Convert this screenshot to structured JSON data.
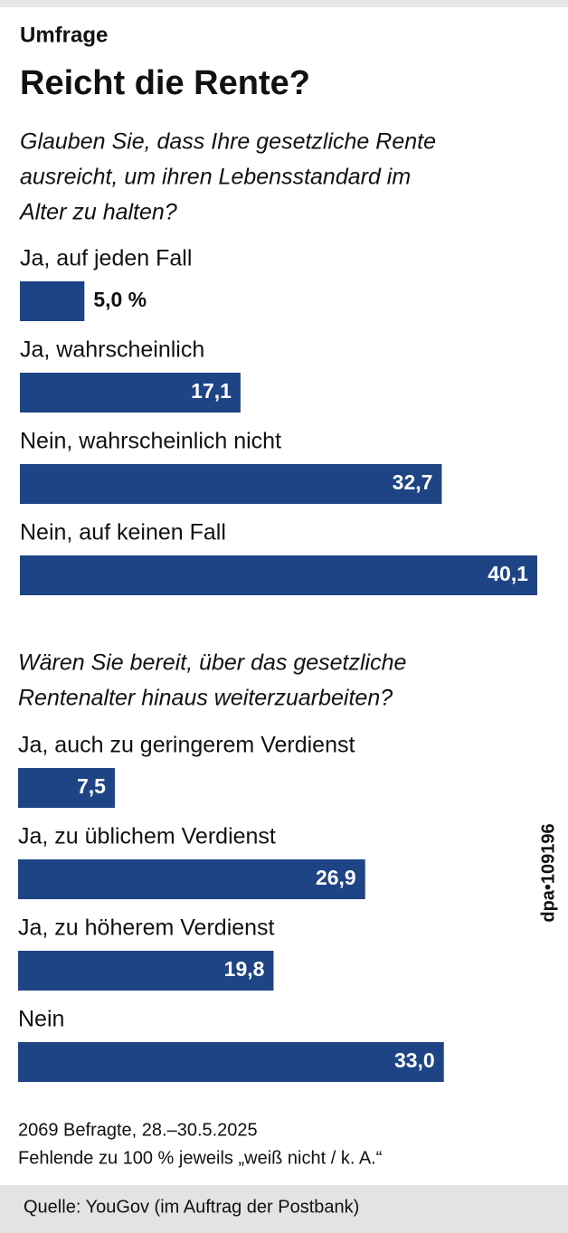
{
  "kicker": "Umfrage",
  "title": "Reicht die Rente?",
  "chart_data": [
    {
      "type": "bar",
      "title": [
        "Glauben Sie, dass Ihre gesetzliche Rente",
        "ausreicht, um ihren Lebensstandard im",
        "Alter zu halten?"
      ],
      "categories": [
        "Ja, auf jeden Fall",
        "Ja, wahrscheinlich",
        "Nein, wahrscheinlich nicht",
        "Nein, auf keinen Fall"
      ],
      "values": [
        5.0,
        17.1,
        32.7,
        40.1
      ],
      "value_labels": [
        "5,0 %",
        "17,1",
        "32,7",
        "40,1"
      ],
      "color": "#1f4486"
    },
    {
      "type": "bar",
      "title": [
        "Wären Sie bereit, über das gesetzliche",
        "Rentenalter hinaus weiterzuarbeiten?"
      ],
      "categories": [
        "Ja, auch zu geringerem Verdienst",
        "Ja, zu üblichem Verdienst",
        "Ja, zu höherem Verdienst",
        "Nein"
      ],
      "values": [
        7.5,
        26.9,
        19.8,
        33.0
      ],
      "value_labels": [
        "7,5",
        "26,9",
        "19,8",
        "33,0"
      ],
      "color": "#1f4486"
    }
  ],
  "notes": [
    "2069 Befragte, 28.–30.5.2025",
    "Fehlende zu 100 % jeweils „weiß nicht / k. A.“"
  ],
  "source": "Quelle: YouGov (im Auftrag der Postbank)",
  "credit": "dpa•109196"
}
